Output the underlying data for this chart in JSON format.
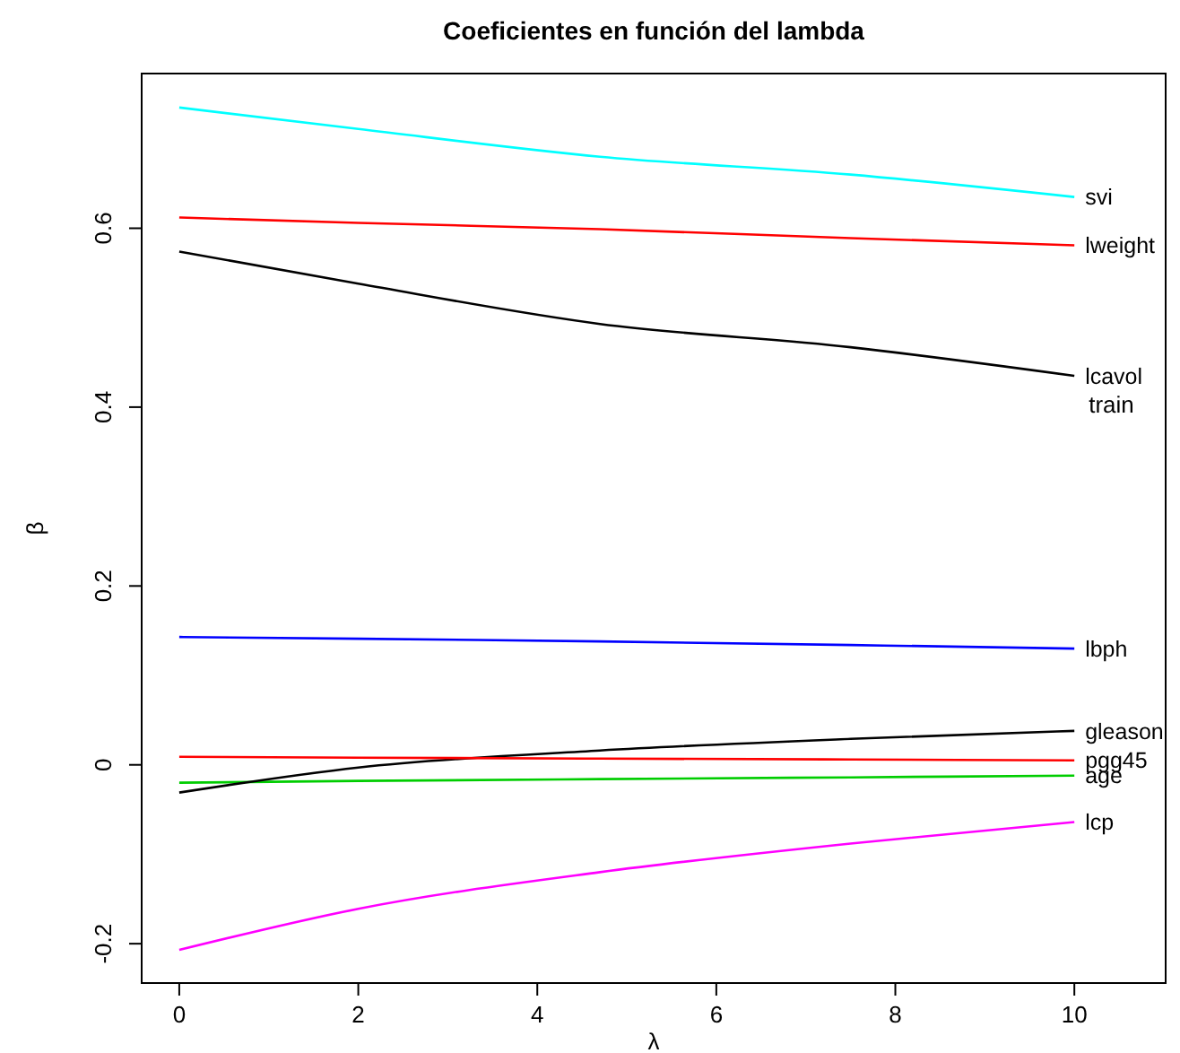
{
  "chart_data": {
    "type": "line",
    "title": "Coeficientes en función del lambda",
    "xlabel": "λ",
    "ylabel": "β",
    "x": [
      0,
      2,
      4.7,
      7.5,
      10
    ],
    "xlim": [
      -0.42,
      11.02
    ],
    "xticks": [
      0,
      2,
      4,
      6,
      8,
      10
    ],
    "ylim": [
      -0.244,
      0.773
    ],
    "yticks": [
      -0.2,
      0,
      0.2,
      0.4,
      0.6
    ],
    "grid": false,
    "legend": false,
    "marker": "none",
    "line_style": "solid",
    "series": [
      {
        "name": "lcavol",
        "color": "#000000",
        "values": [
          0.574,
          0.538,
          0.493,
          0.467,
          0.435
        ]
      },
      {
        "name": "lweight",
        "color": "#ff0000",
        "values": [
          0.612,
          0.606,
          0.599,
          0.589,
          0.581
        ]
      },
      {
        "name": "age",
        "color": "#00cd00",
        "values": [
          -0.02,
          -0.018,
          -0.016,
          -0.014,
          -0.012
        ]
      },
      {
        "name": "lbph",
        "color": "#0000ff",
        "values": [
          0.143,
          0.141,
          0.138,
          0.134,
          0.13
        ]
      },
      {
        "name": "svi",
        "color": "#00ffff",
        "values": [
          0.735,
          0.711,
          0.68,
          0.66,
          0.635
        ]
      },
      {
        "name": "lcp",
        "color": "#ff00ff",
        "values": [
          -0.207,
          -0.161,
          -0.12,
          -0.088,
          -0.064
        ]
      },
      {
        "name": "gleason",
        "color": "#000000",
        "values": [
          -0.031,
          -0.003,
          0.016,
          0.029,
          0.038
        ]
      },
      {
        "name": "pgg45",
        "color": "#ff0000",
        "values": [
          0.009,
          0.008,
          0.007,
          0.006,
          0.005
        ]
      }
    ],
    "annotations": [
      {
        "text": "train",
        "x": 10,
        "y": 0.435
      }
    ]
  }
}
